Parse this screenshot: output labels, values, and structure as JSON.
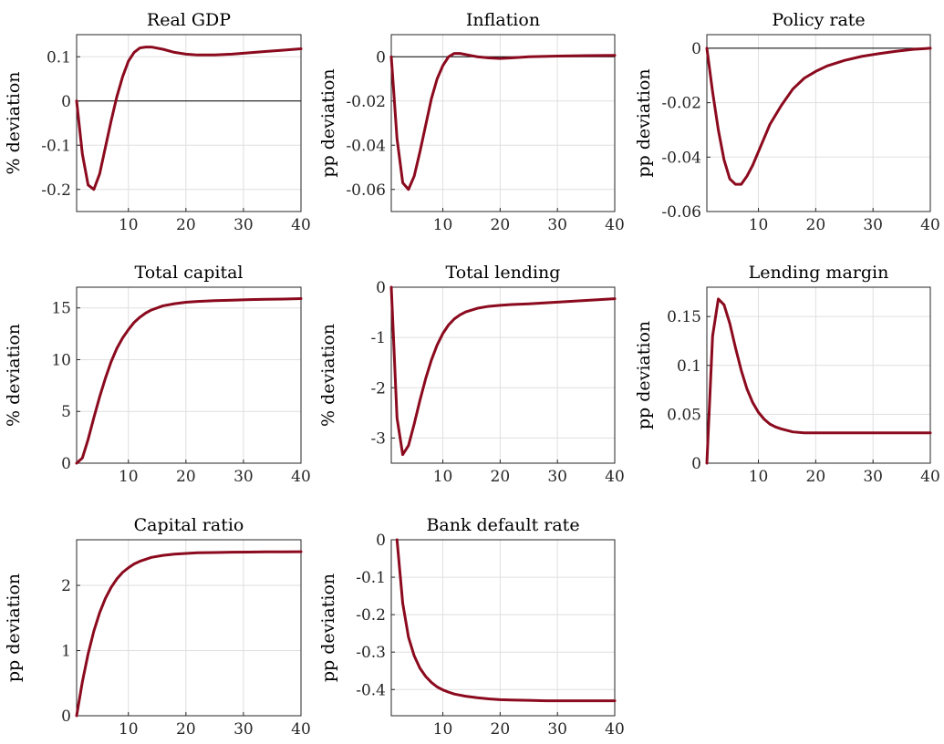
{
  "chart_data": [
    {
      "type": "line",
      "title": "Real GDP",
      "ylabel": "% deviation",
      "xlim": [
        1,
        40
      ],
      "ylim": [
        -0.25,
        0.15
      ],
      "xticks": [
        10,
        20,
        30,
        40
      ],
      "yticks": [
        -0.2,
        -0.1,
        0,
        0.1
      ],
      "ytick_labels": [
        "-0.2",
        "-0.1",
        "0",
        "0.1"
      ],
      "grid": true,
      "zero_line": true,
      "series": [
        {
          "color": "#8b0a1e",
          "x": [
            1,
            2,
            3,
            4,
            5,
            6,
            7,
            8,
            9,
            10,
            11,
            12,
            13,
            14,
            16,
            18,
            20,
            22,
            25,
            28,
            31,
            34,
            37,
            40
          ],
          "y": [
            0,
            -0.12,
            -0.19,
            -0.2,
            -0.165,
            -0.105,
            -0.045,
            0.01,
            0.055,
            0.09,
            0.11,
            0.12,
            0.122,
            0.122,
            0.117,
            0.11,
            0.106,
            0.104,
            0.104,
            0.106,
            0.109,
            0.112,
            0.115,
            0.118
          ]
        }
      ]
    },
    {
      "type": "line",
      "title": "Inflation",
      "ylabel": "pp deviation",
      "xlim": [
        1,
        40
      ],
      "ylim": [
        -0.07,
        0.01
      ],
      "xticks": [
        10,
        20,
        30,
        40
      ],
      "yticks": [
        -0.06,
        -0.04,
        -0.02,
        0
      ],
      "ytick_labels": [
        "-0.06",
        "-0.04",
        "-0.02",
        "0"
      ],
      "grid": true,
      "zero_line": true,
      "series": [
        {
          "color": "#8b0a1e",
          "x": [
            1,
            2,
            3,
            4,
            5,
            6,
            7,
            8,
            9,
            10,
            11,
            12,
            13,
            14,
            15,
            16,
            18,
            20,
            22,
            25,
            30,
            35,
            40
          ],
          "y": [
            0,
            -0.037,
            -0.057,
            -0.06,
            -0.054,
            -0.043,
            -0.031,
            -0.019,
            -0.01,
            -0.004,
            0.0,
            0.0015,
            0.0015,
            0.001,
            0.0005,
            0.0,
            -0.0005,
            -0.0008,
            -0.0005,
            0.0,
            0.0003,
            0.0005,
            0.0006
          ]
        }
      ]
    },
    {
      "type": "line",
      "title": "Policy rate",
      "ylabel": "pp deviation",
      "xlim": [
        1,
        40
      ],
      "ylim": [
        -0.06,
        0.005
      ],
      "xticks": [
        10,
        20,
        30,
        40
      ],
      "yticks": [
        -0.06,
        -0.04,
        -0.02,
        0
      ],
      "ytick_labels": [
        "-0.06",
        "-0.04",
        "-0.02",
        "0"
      ],
      "grid": true,
      "zero_line": true,
      "series": [
        {
          "color": "#8b0a1e",
          "x": [
            1,
            2,
            3,
            4,
            5,
            6,
            7,
            8,
            9,
            10,
            11,
            12,
            14,
            16,
            18,
            20,
            22,
            25,
            28,
            31,
            34,
            37,
            40
          ],
          "y": [
            0,
            -0.016,
            -0.03,
            -0.041,
            -0.048,
            -0.05,
            -0.05,
            -0.047,
            -0.043,
            -0.038,
            -0.033,
            -0.028,
            -0.021,
            -0.015,
            -0.011,
            -0.0085,
            -0.0065,
            -0.0045,
            -0.003,
            -0.002,
            -0.0011,
            -0.0004,
            0.0
          ]
        }
      ]
    },
    {
      "type": "line",
      "title": "Total capital",
      "ylabel": "% deviation",
      "xlim": [
        1,
        40
      ],
      "ylim": [
        0,
        17
      ],
      "xticks": [
        10,
        20,
        30,
        40
      ],
      "yticks": [
        0,
        5,
        10,
        15
      ],
      "ytick_labels": [
        "0",
        "5",
        "10",
        "15"
      ],
      "grid": true,
      "zero_line": false,
      "series": [
        {
          "color": "#8b0a1e",
          "x": [
            1,
            2,
            3,
            4,
            5,
            6,
            7,
            8,
            9,
            10,
            11,
            12,
            13,
            14,
            16,
            18,
            20,
            22,
            25,
            28,
            31,
            34,
            37,
            40
          ],
          "y": [
            0,
            0.5,
            2.3,
            4.4,
            6.4,
            8.2,
            9.8,
            11.1,
            12.1,
            12.9,
            13.6,
            14.1,
            14.5,
            14.8,
            15.2,
            15.4,
            15.55,
            15.62,
            15.7,
            15.75,
            15.8,
            15.83,
            15.86,
            15.9
          ]
        }
      ]
    },
    {
      "type": "line",
      "title": "Total lending",
      "ylabel": "% deviation",
      "xlim": [
        1,
        40
      ],
      "ylim": [
        -3.5,
        0
      ],
      "xticks": [
        10,
        20,
        30,
        40
      ],
      "yticks": [
        -3,
        -2,
        -1,
        0
      ],
      "ytick_labels": [
        "-3",
        "-2",
        "-1",
        "0"
      ],
      "grid": true,
      "zero_line": false,
      "series": [
        {
          "color": "#8b0a1e",
          "x": [
            1,
            2,
            3,
            4,
            5,
            6,
            7,
            8,
            9,
            10,
            11,
            12,
            13,
            14,
            16,
            18,
            20,
            22,
            25,
            28,
            31,
            34,
            37,
            40
          ],
          "y": [
            0,
            -2.6,
            -3.33,
            -3.15,
            -2.72,
            -2.25,
            -1.82,
            -1.45,
            -1.15,
            -0.92,
            -0.75,
            -0.63,
            -0.55,
            -0.49,
            -0.42,
            -0.38,
            -0.36,
            -0.345,
            -0.33,
            -0.31,
            -0.29,
            -0.27,
            -0.25,
            -0.23
          ]
        }
      ]
    },
    {
      "type": "line",
      "title": "Lending margin",
      "ylabel": "pp deviation",
      "xlim": [
        1,
        40
      ],
      "ylim": [
        0,
        0.18
      ],
      "xticks": [
        10,
        20,
        30,
        40
      ],
      "yticks": [
        0,
        0.05,
        0.1,
        0.15
      ],
      "ytick_labels": [
        "0",
        "0.05",
        "0.1",
        "0.15"
      ],
      "grid": true,
      "zero_line": false,
      "series": [
        {
          "color": "#8b0a1e",
          "x": [
            1,
            2,
            3,
            4,
            5,
            6,
            7,
            8,
            9,
            10,
            11,
            12,
            13,
            14,
            16,
            18,
            20,
            22,
            25,
            30,
            35,
            40
          ],
          "y": [
            0,
            0.13,
            0.168,
            0.162,
            0.143,
            0.118,
            0.095,
            0.076,
            0.062,
            0.052,
            0.045,
            0.04,
            0.037,
            0.035,
            0.032,
            0.031,
            0.031,
            0.031,
            0.031,
            0.031,
            0.031,
            0.031
          ]
        }
      ]
    },
    {
      "type": "line",
      "title": "Capital ratio",
      "ylabel": "pp deviation",
      "xlim": [
        1,
        40
      ],
      "ylim": [
        0,
        2.7
      ],
      "xticks": [
        10,
        20,
        30,
        40
      ],
      "yticks": [
        0,
        1,
        2
      ],
      "ytick_labels": [
        "0",
        "1",
        "2"
      ],
      "grid": true,
      "zero_line": false,
      "series": [
        {
          "color": "#8b0a1e",
          "x": [
            1,
            2,
            3,
            4,
            5,
            6,
            7,
            8,
            9,
            10,
            11,
            12,
            13,
            14,
            16,
            18,
            20,
            22,
            25,
            28,
            31,
            34,
            37,
            40
          ],
          "y": [
            0,
            0.52,
            0.95,
            1.3,
            1.58,
            1.8,
            1.97,
            2.1,
            2.2,
            2.27,
            2.33,
            2.37,
            2.4,
            2.43,
            2.46,
            2.48,
            2.49,
            2.5,
            2.505,
            2.51,
            2.512,
            2.514,
            2.515,
            2.516
          ]
        }
      ]
    },
    {
      "type": "line",
      "title": "Bank default rate",
      "ylabel": "pp deviation",
      "xlim": [
        1,
        40
      ],
      "ylim": [
        -0.47,
        0
      ],
      "xticks": [
        10,
        20,
        30,
        40
      ],
      "yticks": [
        -0.4,
        -0.3,
        -0.2,
        -0.1,
        0
      ],
      "ytick_labels": [
        "-0.4",
        "-0.3",
        "-0.2",
        "-0.1",
        "0"
      ],
      "grid": true,
      "zero_line": false,
      "series": [
        {
          "color": "#8b0a1e",
          "x": [
            2,
            3,
            4,
            5,
            6,
            7,
            8,
            9,
            10,
            11,
            12,
            13,
            14,
            16,
            18,
            20,
            22,
            25,
            28,
            31,
            34,
            37,
            40
          ],
          "y": [
            0,
            -0.17,
            -0.26,
            -0.31,
            -0.343,
            -0.365,
            -0.381,
            -0.393,
            -0.401,
            -0.407,
            -0.412,
            -0.415,
            -0.418,
            -0.422,
            -0.425,
            -0.427,
            -0.428,
            -0.429,
            -0.43,
            -0.43,
            -0.43,
            -0.43,
            -0.43
          ]
        }
      ]
    }
  ]
}
